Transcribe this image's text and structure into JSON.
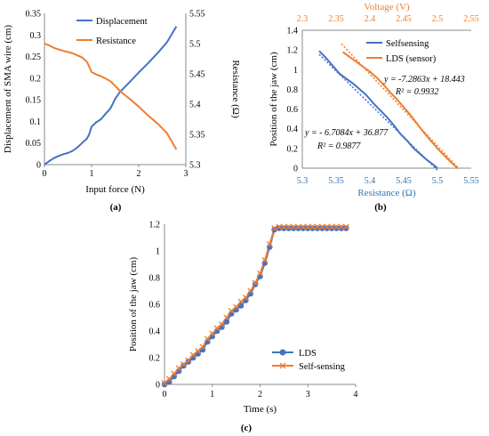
{
  "colors": {
    "blue": "#4472c4",
    "orange": "#ed7d31",
    "axis": "#000000",
    "cyan_text": "#2e75b6"
  },
  "chart_data": [
    {
      "id": "a",
      "type": "line",
      "caption": "(a)",
      "xlabel": "Input force (N)",
      "ylabel_left": "Displacement of SMA wire (cm)",
      "ylabel_right": "Resistance (Ω)",
      "xlim": [
        0,
        3
      ],
      "ylim_left": [
        0,
        0.35
      ],
      "ylim_right": [
        5.3,
        5.55
      ],
      "xticks": [
        "0",
        "1",
        "2",
        "3"
      ],
      "yticks_left": [
        "0",
        "0.05",
        "0.1",
        "0.15",
        "0.2",
        "0.25",
        "0.3",
        "0.35"
      ],
      "yticks_right": [
        "5.3",
        "5.35",
        "5.4",
        "5.45",
        "5.5",
        "5.55"
      ],
      "legend_position": "top-right",
      "series": [
        {
          "name": "Displacement",
          "axis": "left",
          "color": "#4472c4",
          "x": [
            0,
            0.1,
            0.2,
            0.3,
            0.4,
            0.5,
            0.6,
            0.7,
            0.8,
            0.9,
            0.95,
            1.0,
            1.1,
            1.2,
            1.3,
            1.4,
            1.5,
            1.6,
            1.8,
            2.0,
            2.2,
            2.4,
            2.6,
            2.8
          ],
          "y": [
            0,
            0.008,
            0.015,
            0.02,
            0.024,
            0.027,
            0.032,
            0.04,
            0.05,
            0.06,
            0.07,
            0.088,
            0.098,
            0.105,
            0.118,
            0.13,
            0.152,
            0.168,
            0.19,
            0.213,
            0.235,
            0.258,
            0.283,
            0.32
          ]
        },
        {
          "name": "Resistance",
          "axis": "right",
          "color": "#ed7d31",
          "x": [
            0,
            0.1,
            0.2,
            0.4,
            0.6,
            0.8,
            0.9,
            0.95,
            1.0,
            1.1,
            1.2,
            1.3,
            1.4,
            1.5,
            1.6,
            1.8,
            2.0,
            2.2,
            2.4,
            2.6,
            2.8
          ],
          "y": [
            5.5,
            5.497,
            5.493,
            5.488,
            5.484,
            5.477,
            5.47,
            5.462,
            5.453,
            5.449,
            5.446,
            5.442,
            5.438,
            5.43,
            5.422,
            5.409,
            5.396,
            5.381,
            5.368,
            5.352,
            5.325
          ]
        }
      ]
    },
    {
      "id": "b",
      "type": "scatter",
      "caption": "(b)",
      "xlabel": "Resistance (Ω)",
      "ylabel": "Position of the jaw (cm)",
      "x2label": "Voltage (V)",
      "xlim": [
        5.3,
        5.55
      ],
      "x2lim": [
        2.3,
        2.55
      ],
      "ylim": [
        0,
        1.4
      ],
      "xticks": [
        "5.3",
        "5.35",
        "5.4",
        "5.45",
        "5.5",
        "5.55"
      ],
      "x2ticks": [
        "2.3",
        "2.35",
        "2.4",
        "2.45",
        "2.5",
        "2.55"
      ],
      "yticks": [
        "0",
        "0.2",
        "0.4",
        "0.6",
        "0.8",
        "1",
        "1.2",
        "1.4"
      ],
      "legend_position": "top-right",
      "series": [
        {
          "name": "Selfsensing",
          "axis": "bottom",
          "color": "#4472c4",
          "x": [
            5.325,
            5.335,
            5.345,
            5.355,
            5.365,
            5.375,
            5.385,
            5.395,
            5.405,
            5.415,
            5.425,
            5.435,
            5.445,
            5.455,
            5.465,
            5.475,
            5.485,
            5.495,
            5.5
          ],
          "y": [
            1.19,
            1.12,
            1.04,
            0.96,
            0.91,
            0.86,
            0.8,
            0.74,
            0.66,
            0.59,
            0.52,
            0.44,
            0.35,
            0.28,
            0.2,
            0.14,
            0.08,
            0.03,
            0
          ]
        },
        {
          "name": "LDS (sensor)",
          "axis": "top",
          "color": "#ed7d31",
          "x": [
            2.36,
            2.37,
            2.38,
            2.39,
            2.4,
            2.41,
            2.42,
            2.43,
            2.44,
            2.45,
            2.46,
            2.47,
            2.48,
            2.49,
            2.5,
            2.51,
            2.52,
            2.53
          ],
          "y": [
            1.18,
            1.13,
            1.08,
            1.03,
            0.98,
            0.92,
            0.85,
            0.77,
            0.7,
            0.62,
            0.54,
            0.45,
            0.36,
            0.28,
            0.2,
            0.13,
            0.06,
            0
          ]
        }
      ],
      "trendlines": [
        {
          "series": "Selfsensing",
          "axis": "bottom",
          "color": "#4472c4",
          "slope": -6.7084,
          "intercept": 36.877,
          "x_range": [
            5.325,
            5.5
          ],
          "equation": "y = - 6.7084x + 36.877",
          "r2": "R² = 0.9877"
        },
        {
          "series": "LDS (sensor)",
          "axis": "top",
          "color": "#ed7d31",
          "slope": -7.2863,
          "intercept": 18.443,
          "x_range": [
            2.358,
            2.532
          ],
          "equation": "y = -7.2863x + 18.443",
          "r2": "R² = 0.9932"
        }
      ]
    },
    {
      "id": "c",
      "type": "line",
      "caption": "(c)",
      "xlabel": "Time (s)",
      "ylabel": "Position of the jaw (cm)",
      "xlim": [
        0,
        4
      ],
      "ylim": [
        0,
        1.2
      ],
      "xticks": [
        "0",
        "1",
        "2",
        "3",
        "4"
      ],
      "yticks": [
        "0",
        "0.2",
        "0.4",
        "0.6",
        "0.8",
        "1",
        "1.2"
      ],
      "legend_position": "bottom-right",
      "x": [
        0,
        0.1,
        0.2,
        0.3,
        0.4,
        0.5,
        0.6,
        0.7,
        0.8,
        0.9,
        1.0,
        1.1,
        1.2,
        1.3,
        1.4,
        1.5,
        1.6,
        1.7,
        1.8,
        1.9,
        2.0,
        2.1,
        2.2,
        2.3,
        2.4,
        2.5,
        2.6,
        2.7,
        2.8,
        2.9,
        3.0,
        3.1,
        3.2,
        3.3,
        3.4,
        3.5,
        3.6,
        3.7,
        3.8
      ],
      "series": [
        {
          "name": "LDS",
          "color": "#4472c4",
          "marker": "circle",
          "y": [
            0,
            0.02,
            0.06,
            0.1,
            0.14,
            0.17,
            0.2,
            0.23,
            0.26,
            0.32,
            0.36,
            0.4,
            0.43,
            0.47,
            0.53,
            0.56,
            0.59,
            0.63,
            0.68,
            0.75,
            0.81,
            0.91,
            1.03,
            1.16,
            1.17,
            1.17,
            1.17,
            1.17,
            1.17,
            1.17,
            1.17,
            1.17,
            1.17,
            1.17,
            1.17,
            1.17,
            1.17,
            1.17,
            1.17
          ]
        },
        {
          "name": "Self-sensing",
          "color": "#ed7d31",
          "marker": "x",
          "y": [
            0.01,
            0.04,
            0.08,
            0.12,
            0.15,
            0.18,
            0.22,
            0.25,
            0.28,
            0.34,
            0.38,
            0.42,
            0.45,
            0.5,
            0.55,
            0.58,
            0.62,
            0.65,
            0.7,
            0.76,
            0.83,
            0.93,
            1.05,
            1.17,
            1.18,
            1.18,
            1.18,
            1.18,
            1.18,
            1.18,
            1.18,
            1.18,
            1.18,
            1.18,
            1.18,
            1.18,
            1.18,
            1.18,
            1.18
          ]
        }
      ]
    }
  ]
}
